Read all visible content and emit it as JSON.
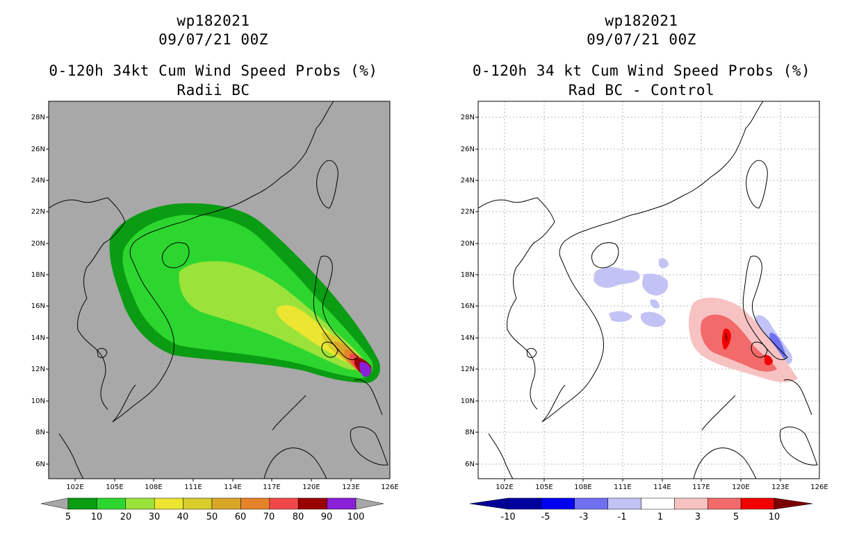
{
  "left_panel": {
    "title_storm": "wp182021",
    "title_time": "09/07/21 00Z",
    "title_product": "0-120h 34kt Cum Wind Speed Probs (%)",
    "title_subtitle": "Radii BC",
    "colorbar": {
      "labels": [
        "5",
        "10",
        "20",
        "30",
        "40",
        "50",
        "60",
        "70",
        "80",
        "90",
        "100"
      ],
      "colors": [
        "#0a9c13",
        "#2dd62f",
        "#9be33a",
        "#ece531",
        "#d8cd2c",
        "#d9a628",
        "#e6832a",
        "#f2474a",
        "#9a0000",
        "#8a20d8"
      ],
      "extension_color": "#a8a8a8"
    }
  },
  "right_panel": {
    "title_storm": "wp182021",
    "title_time": "09/07/21 00Z",
    "title_product": "0-120h 34 kt Cum Wind Speed Probs (%)",
    "title_subtitle": "Rad BC - Control",
    "colorbar": {
      "labels": [
        "-10",
        "-5",
        "-3",
        "-1",
        "1",
        "3",
        "5",
        "10"
      ],
      "colors": [
        "#0000a0",
        "#0000f0",
        "#6f6ff2",
        "#c2c2f5",
        "#ffffff",
        "#f7c2c2",
        "#f26a6a",
        "#f20000"
      ],
      "extension_low_color": "#000096",
      "extension_high_color": "#7a0000"
    }
  },
  "map_axes": {
    "lat_labels": [
      "28N",
      "26N",
      "24N",
      "22N",
      "20N",
      "18N",
      "16N",
      "14N",
      "12N",
      "10N",
      "8N",
      "6N"
    ],
    "lon_labels": [
      "102E",
      "105E",
      "108E",
      "111E",
      "114E",
      "117E",
      "120E",
      "123E",
      "126E"
    ],
    "lon_range": [
      100,
      126
    ],
    "lat_range": [
      5,
      29
    ]
  },
  "colors": {
    "land_outline": "#000000",
    "left_background": "#a8a8a8",
    "right_background": "#ffffff",
    "grid": "#b4b4b4"
  }
}
